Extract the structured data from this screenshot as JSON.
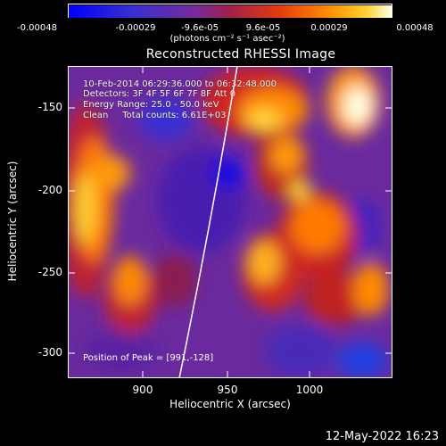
{
  "colorbar": {
    "tick_labels": [
      "-0.00048",
      "-0.00029",
      "-9.6e-05",
      "9.6e-05",
      "0.00029",
      "0.00048"
    ],
    "units": "(photons cm⁻² s⁻¹ asec⁻²)"
  },
  "title": "Reconstructed RHESSI Image",
  "info": {
    "time_range": "10-Feb-2014 06:29:36.000 to 06:32:48.000",
    "detectors": "Detectors: 3F 4F 5F 6F 7F 8F Att 0",
    "energy": "Energy Range: 25.0 - 50.0 keV",
    "method": "Clean     Total counts: 6.61E+03"
  },
  "axes": {
    "xlabel": "Heliocentric X (arcsec)",
    "ylabel": "Heliocentric Y (arcsec)",
    "xticks": [
      "900",
      "950",
      "1000"
    ],
    "yticks": [
      "-150",
      "-200",
      "-250",
      "-300"
    ]
  },
  "peak_label": "Position of Peak = [991,-128]",
  "footer_timestamp": "12-May-2022 16:23",
  "colors": {
    "background": "#000000",
    "colormap": [
      "#0000ff",
      "#5a1fa8",
      "#7a2a9a",
      "#b31a3a",
      "#e33a10",
      "#ff8a00",
      "#ffd030",
      "#ffffe0"
    ]
  }
}
